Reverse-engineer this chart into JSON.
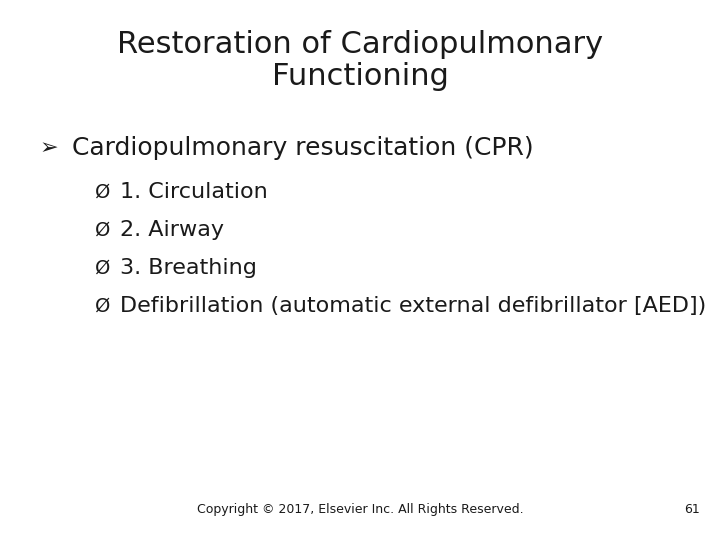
{
  "title_line1": "Restoration of Cardiopulmonary",
  "title_line2": "Functioning",
  "bullet_main": "Cardiopulmonary resuscitation (CPR)",
  "sub_bullets": [
    "1. Circulation",
    "2. Airway",
    "3. Breathing",
    "Defibrillation (automatic external defibrillator [AED])"
  ],
  "footer": "Copyright © 2017, Elsevier Inc. All Rights Reserved.",
  "page_number": "61",
  "bg_color": "#ffffff",
  "text_color": "#1a1a1a",
  "title_fontsize": 22,
  "main_bullet_fontsize": 18,
  "sub_bullet_fontsize": 16,
  "footer_fontsize": 9
}
